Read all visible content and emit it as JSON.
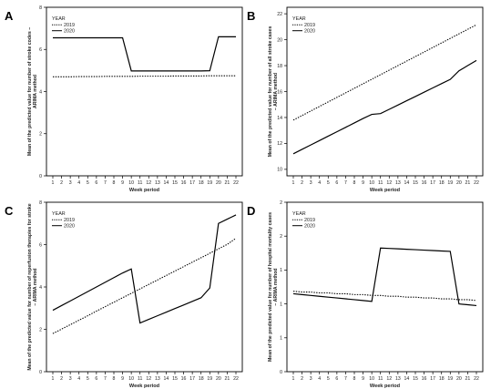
{
  "chart_data": [
    {
      "type": "line",
      "panel_label": "A",
      "ylabel": "Mean of the predicted value for number of stroke codes – ARIMA method",
      "xlabel": "Week period",
      "ylim": [
        0,
        8
      ],
      "yticks": [
        "0",
        "2",
        "4",
        "6",
        "8"
      ],
      "legend_title": "YEAR",
      "legend_position": "top-left",
      "categories": [
        "1",
        "2",
        "3",
        "4",
        "5",
        "6",
        "7",
        "8",
        "9",
        "10",
        "11",
        "12",
        "13",
        "14",
        "15",
        "16",
        "17",
        "18",
        "19",
        "20",
        "21",
        "22"
      ],
      "series": [
        {
          "name": "2019",
          "style": "dotted",
          "values": [
            4.7,
            4.7,
            4.7,
            4.71,
            4.71,
            4.71,
            4.72,
            4.72,
            4.72,
            4.72,
            4.73,
            4.73,
            4.73,
            4.73,
            4.74,
            4.74,
            4.74,
            4.74,
            4.75,
            4.75,
            4.75,
            4.75
          ]
        },
        {
          "name": "2020",
          "style": "solid",
          "values": [
            6.55,
            6.55,
            6.55,
            6.55,
            6.55,
            6.55,
            6.55,
            6.55,
            6.55,
            4.98,
            4.98,
            4.98,
            4.98,
            4.98,
            4.98,
            4.98,
            4.98,
            4.98,
            4.99,
            6.6,
            6.6,
            6.6
          ]
        }
      ]
    },
    {
      "type": "line",
      "panel_label": "B",
      "ylabel": "Mean of the predicted value for number of all stroke cases – ARIMA method",
      "xlabel": "Week period",
      "ylim": [
        9.5,
        22.5
      ],
      "yticks": [
        "10",
        "12",
        "14",
        "16",
        "18",
        "20",
        "22"
      ],
      "legend_title": "YEAR",
      "legend_position": "top-left",
      "categories": [
        "1",
        "2",
        "3",
        "4",
        "5",
        "6",
        "7",
        "8",
        "9",
        "10",
        "11",
        "12",
        "13",
        "14",
        "15",
        "16",
        "17",
        "18",
        "19",
        "20",
        "21",
        "22"
      ],
      "series": [
        {
          "name": "2019",
          "style": "dotted",
          "values": [
            13.8,
            14.15,
            14.5,
            14.85,
            15.2,
            15.55,
            15.9,
            16.25,
            16.6,
            16.95,
            17.3,
            17.65,
            18.0,
            18.35,
            18.7,
            19.05,
            19.4,
            19.75,
            20.1,
            20.45,
            20.8,
            21.15
          ]
        },
        {
          "name": "2020",
          "style": "solid",
          "values": [
            11.2,
            11.54,
            11.88,
            12.22,
            12.56,
            12.9,
            13.24,
            13.58,
            13.92,
            14.24,
            14.3,
            14.63,
            14.96,
            15.29,
            15.62,
            15.95,
            16.28,
            16.61,
            16.94,
            17.6,
            18.0,
            18.4
          ]
        }
      ]
    },
    {
      "type": "line",
      "panel_label": "C",
      "ylabel": "Mean of the predicted value for number of reperfusion therapies for stroke – ARIMA method",
      "xlabel": "Week period",
      "ylim": [
        0,
        8
      ],
      "yticks": [
        "0",
        "2",
        "4",
        "6",
        "8"
      ],
      "legend_title": "YEAR",
      "legend_position": "top-left",
      "categories": [
        "1",
        "2",
        "3",
        "4",
        "5",
        "6",
        "7",
        "8",
        "9",
        "10",
        "11",
        "12",
        "13",
        "14",
        "15",
        "16",
        "17",
        "18",
        "19",
        "20",
        "21",
        "22"
      ],
      "series": [
        {
          "name": "2019",
          "style": "dotted",
          "values": [
            1.8,
            2.01,
            2.22,
            2.43,
            2.64,
            2.86,
            3.07,
            3.28,
            3.49,
            3.7,
            3.91,
            4.12,
            4.33,
            4.54,
            4.75,
            4.96,
            5.17,
            5.38,
            5.59,
            5.8,
            6.01,
            6.3
          ]
        },
        {
          "name": "2020",
          "style": "solid",
          "values": [
            2.9,
            3.12,
            3.34,
            3.56,
            3.78,
            4.0,
            4.22,
            4.44,
            4.66,
            4.85,
            2.3,
            2.47,
            2.64,
            2.81,
            2.98,
            3.15,
            3.32,
            3.49,
            3.95,
            7.0,
            7.2,
            7.4
          ]
        }
      ]
    },
    {
      "type": "line",
      "panel_label": "D",
      "ylabel": "Mean of the predicted value for number of hospital mortality cases – ARIMA method",
      "xlabel": "Week period",
      "ylim": [
        0,
        2
      ],
      "yticks": [
        "0",
        "1",
        "1",
        "1",
        "2",
        "2"
      ],
      "legend_title": "YEAR",
      "legend_position": "top-left",
      "categories": [
        "1",
        "2",
        "3",
        "4",
        "5",
        "6",
        "7",
        "8",
        "9",
        "10",
        "11",
        "12",
        "13",
        "14",
        "15",
        "16",
        "17",
        "18",
        "19",
        "20",
        "21",
        "22"
      ],
      "series": [
        {
          "name": "2019",
          "style": "dotted",
          "values": [
            0.95,
            0.94,
            0.94,
            0.93,
            0.93,
            0.92,
            0.92,
            0.91,
            0.91,
            0.9,
            0.9,
            0.89,
            0.89,
            0.88,
            0.88,
            0.87,
            0.87,
            0.86,
            0.86,
            0.85,
            0.85,
            0.84
          ]
        },
        {
          "name": "2020",
          "style": "solid",
          "values": [
            0.92,
            0.91,
            0.9,
            0.89,
            0.88,
            0.87,
            0.86,
            0.85,
            0.84,
            0.83,
            1.46,
            1.455,
            1.45,
            1.445,
            1.44,
            1.435,
            1.43,
            1.425,
            1.42,
            0.8,
            0.79,
            0.78
          ]
        }
      ]
    }
  ]
}
